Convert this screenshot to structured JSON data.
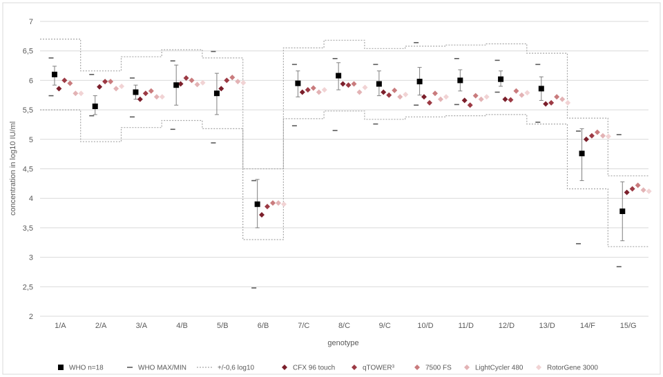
{
  "chart_data": {
    "type": "scatter",
    "title": "",
    "xlabel": "genotype",
    "ylabel": "concentration in log10 IU/ml",
    "ylim": [
      2,
      7
    ],
    "yticks": [
      "2",
      "2,5",
      "3",
      "3,5",
      "4",
      "4,5",
      "5",
      "5,5",
      "6",
      "6,5",
      "7"
    ],
    "ytick_values": [
      2,
      2.5,
      3,
      3.5,
      4,
      4.5,
      5,
      5.5,
      6,
      6.5,
      7
    ],
    "grid": "horizontal",
    "legend_position": "bottom",
    "categories": [
      "1/A",
      "2/A",
      "3/A",
      "4/B",
      "5/B",
      "6/B",
      "7/C",
      "8/C",
      "9/C",
      "10/D",
      "11/D",
      "12/D",
      "13/D",
      "14/F",
      "15/G"
    ],
    "who": {
      "name": "WHO n=18",
      "mean": [
        6.1,
        5.56,
        5.8,
        5.92,
        5.78,
        3.9,
        5.95,
        6.08,
        5.94,
        5.98,
        6.0,
        6.02,
        5.86,
        4.76,
        3.78
      ],
      "err_low": [
        5.92,
        5.42,
        5.68,
        5.58,
        5.42,
        3.5,
        5.72,
        5.84,
        5.74,
        5.75,
        5.82,
        5.9,
        5.66,
        4.3,
        3.28
      ],
      "err_high": [
        6.24,
        5.74,
        5.92,
        6.26,
        6.12,
        4.32,
        6.16,
        6.3,
        6.16,
        6.22,
        6.18,
        6.16,
        6.06,
        5.18,
        4.28
      ]
    },
    "who_max_min": {
      "name": "WHO MAX/MIN",
      "max": [
        6.38,
        6.1,
        6.04,
        6.33,
        6.49,
        4.3,
        6.27,
        6.37,
        6.27,
        6.64,
        6.37,
        6.34,
        6.27,
        5.14,
        5.08
      ],
      "min": [
        5.74,
        5.4,
        5.38,
        5.17,
        4.94,
        2.48,
        5.23,
        5.15,
        5.26,
        5.58,
        5.59,
        5.8,
        5.29,
        3.23,
        2.84
      ]
    },
    "band": {
      "name": "+/-0,6 log10",
      "upper": [
        6.7,
        6.16,
        6.4,
        6.52,
        6.38,
        4.5,
        6.55,
        6.68,
        6.54,
        6.58,
        6.6,
        6.62,
        6.46,
        5.36,
        4.38
      ],
      "lower": [
        5.5,
        4.96,
        5.2,
        5.32,
        5.18,
        3.3,
        5.35,
        5.48,
        5.34,
        5.38,
        5.4,
        5.42,
        5.26,
        4.16,
        3.18
      ]
    },
    "series": [
      {
        "name": "CFX 96 touch",
        "color": "#7b1f2b",
        "values": [
          5.86,
          5.89,
          5.68,
          5.94,
          5.86,
          3.72,
          5.8,
          5.94,
          5.8,
          5.72,
          5.66,
          5.68,
          5.6,
          5.0,
          4.1
        ]
      },
      {
        "name": "qTOWER³",
        "color": "#9c3a44",
        "values": [
          6.0,
          5.98,
          5.78,
          6.04,
          6.0,
          3.86,
          5.84,
          5.92,
          5.75,
          5.62,
          5.58,
          5.67,
          5.62,
          5.06,
          4.16
        ]
      },
      {
        "name": "7500 FS",
        "color": "#c97b7d",
        "values": [
          5.95,
          5.98,
          5.82,
          6.0,
          6.05,
          3.92,
          5.87,
          5.94,
          5.83,
          5.78,
          5.74,
          5.82,
          5.72,
          5.12,
          4.22
        ]
      },
      {
        "name": "LightCycler 480",
        "color": "#e3b3b5",
        "values": [
          5.78,
          5.86,
          5.72,
          5.93,
          5.98,
          3.92,
          5.8,
          5.8,
          5.72,
          5.68,
          5.68,
          5.75,
          5.68,
          5.06,
          4.14
        ]
      },
      {
        "name": "RotorGene 3000",
        "color": "#f1d3d4",
        "values": [
          5.78,
          5.9,
          5.72,
          5.96,
          5.96,
          3.9,
          5.84,
          5.88,
          5.76,
          5.72,
          5.72,
          5.79,
          5.62,
          5.05,
          4.12
        ]
      }
    ],
    "colors": {
      "who": "#000000",
      "minmax": "#595959",
      "band": "#a6a6a6",
      "grid": "#d9d9d9",
      "errorbar": "#7f7f7f"
    }
  }
}
